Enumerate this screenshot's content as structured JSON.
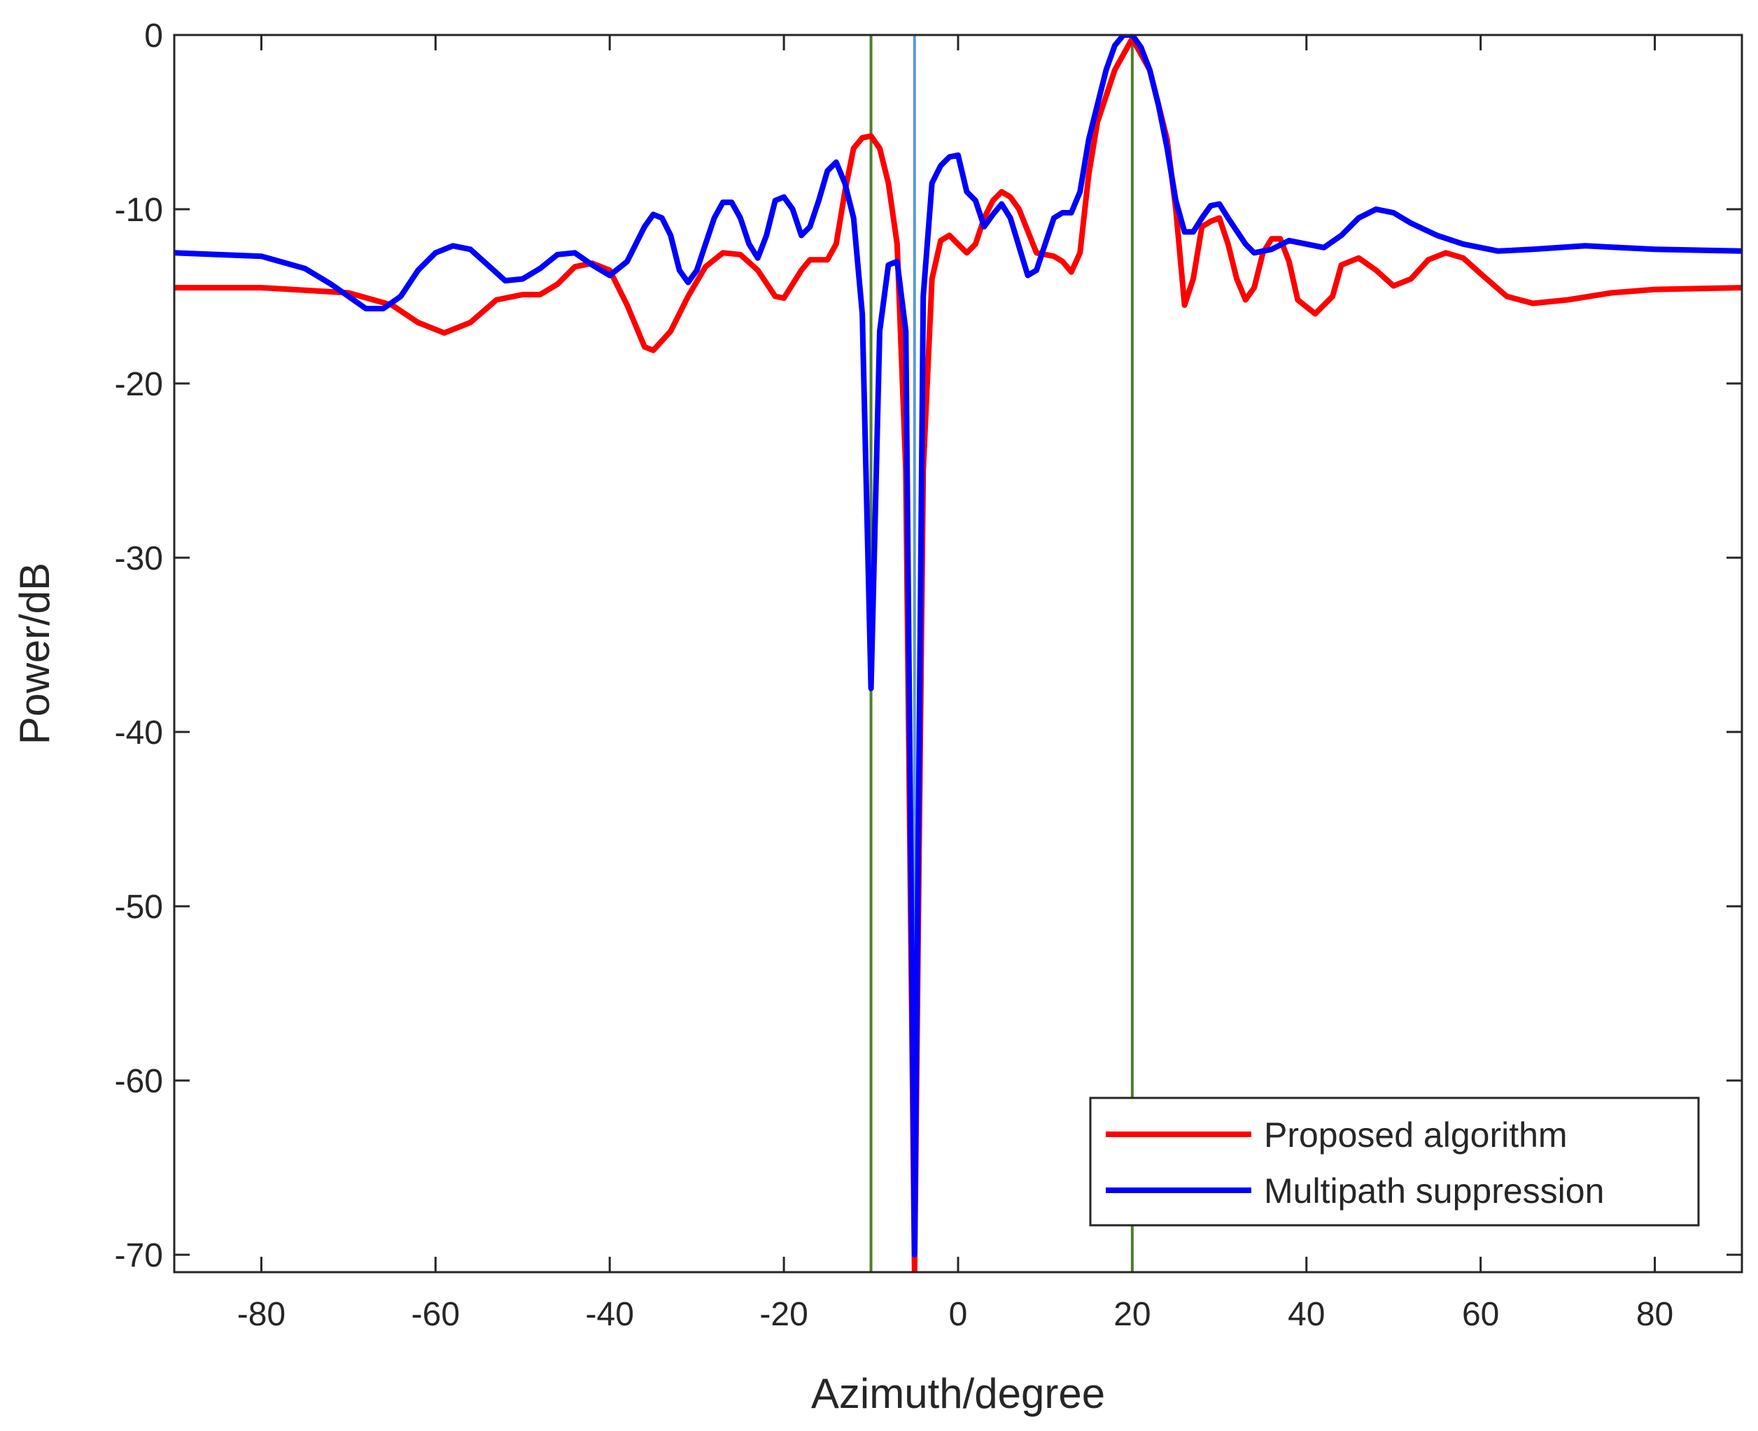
{
  "chart_data": {
    "type": "line",
    "xlabel": "Azimuth/degree",
    "ylabel": "Power/dB",
    "xlim": [
      -90,
      90
    ],
    "ylim": [
      -71,
      0
    ],
    "xticks": [
      -80,
      -60,
      -40,
      -20,
      0,
      20,
      40,
      60,
      80
    ],
    "yticks": [
      -70,
      -60,
      -50,
      -40,
      -30,
      -20,
      -10,
      0
    ],
    "legend": "lower right",
    "reference_lines": [
      {
        "x": -10,
        "color": "#4e7f2e"
      },
      {
        "x": -5,
        "color": "#5b9bd5"
      },
      {
        "x": 20,
        "color": "#4e7f2e"
      }
    ],
    "series": [
      {
        "name": "Proposed algorithm",
        "color": "#ff0000",
        "x": [
          -90,
          -80,
          -70,
          -65,
          -62,
          -59,
          -56,
          -53,
          -50,
          -48,
          -46,
          -44,
          -42,
          -40,
          -38,
          -36,
          -35,
          -33,
          -31,
          -29,
          -27,
          -25,
          -23,
          -21,
          -20,
          -18,
          -17,
          -15,
          -14,
          -13,
          -12,
          -11,
          -10,
          -9,
          -8,
          -7,
          -6,
          -5,
          -4,
          -3,
          -2,
          -1,
          1,
          2,
          3,
          4,
          5,
          6,
          7,
          9,
          11,
          12,
          13,
          14,
          15,
          16,
          18,
          20,
          22,
          24,
          25,
          26,
          27,
          28,
          29,
          30,
          31,
          32,
          33,
          34,
          35,
          36,
          37,
          38,
          39,
          41,
          43,
          44,
          46,
          48,
          50,
          52,
          54,
          56,
          58,
          60,
          63,
          66,
          70,
          75,
          80,
          90
        ],
        "values": [
          -14.5,
          -14.5,
          -14.8,
          -15.5,
          -16.5,
          -17.1,
          -16.5,
          -15.2,
          -14.9,
          -14.9,
          -14.3,
          -13.3,
          -13.1,
          -13.5,
          -15.5,
          -17.9,
          -18.1,
          -17,
          -15,
          -13.3,
          -12.5,
          -12.6,
          -13.5,
          -15,
          -15.1,
          -13.5,
          -12.9,
          -12.9,
          -12,
          -9,
          -6.5,
          -5.9,
          -5.8,
          -6.5,
          -8.5,
          -12,
          -25,
          -71,
          -25,
          -14,
          -11.8,
          -11.5,
          -12.5,
          -12,
          -10.5,
          -9.5,
          -9,
          -9.3,
          -10,
          -12.5,
          -12.7,
          -13,
          -13.6,
          -12.5,
          -8,
          -5,
          -2,
          -0.2,
          -2,
          -6,
          -10,
          -15.5,
          -14,
          -11,
          -10.7,
          -10.5,
          -12,
          -14,
          -15.2,
          -14.5,
          -12.5,
          -11.7,
          -11.7,
          -13,
          -15.2,
          -16,
          -15,
          -13.2,
          -12.8,
          -13.5,
          -14.4,
          -14,
          -12.9,
          -12.5,
          -12.8,
          -13.7,
          -15,
          -15.4,
          -15.2,
          -14.8,
          -14.6,
          -14.5
        ]
      },
      {
        "name": "Multipath suppression",
        "color": "#0000ff",
        "x": [
          -90,
          -80,
          -75,
          -72,
          -70,
          -68,
          -66,
          -64,
          -62,
          -60,
          -58,
          -56,
          -54,
          -52,
          -50,
          -48,
          -46,
          -44,
          -42,
          -40,
          -38,
          -36,
          -35,
          -34,
          -33,
          -32,
          -31,
          -30,
          -29,
          -28,
          -27,
          -26,
          -25,
          -24,
          -23,
          -22,
          -21,
          -20,
          -19,
          -18,
          -17,
          -16,
          -15,
          -14,
          -13,
          -12,
          -11,
          -10,
          -9,
          -8,
          -7,
          -6,
          -5,
          -4,
          -3,
          -2,
          -1,
          0,
          1,
          2,
          3,
          4,
          5,
          6,
          8,
          9,
          10,
          11,
          12,
          13,
          14,
          15,
          16,
          17,
          18,
          19,
          20,
          21,
          22,
          23,
          24,
          25,
          26,
          27,
          28,
          29,
          30,
          31,
          33,
          34,
          36,
          38,
          40,
          42,
          44,
          46,
          48,
          50,
          52,
          55,
          58,
          62,
          66,
          72,
          80,
          90
        ],
        "values": [
          -12.5,
          -12.7,
          -13.4,
          -14.3,
          -15,
          -15.7,
          -15.7,
          -15,
          -13.5,
          -12.5,
          -12.1,
          -12.3,
          -13.2,
          -14.1,
          -14,
          -13.4,
          -12.6,
          -12.5,
          -13.2,
          -13.8,
          -13,
          -11,
          -10.3,
          -10.5,
          -11.5,
          -13.5,
          -14.2,
          -13.5,
          -12,
          -10.5,
          -9.6,
          -9.6,
          -10.5,
          -12,
          -12.8,
          -11.5,
          -9.5,
          -9.3,
          -10,
          -11.5,
          -11,
          -9.5,
          -7.8,
          -7.3,
          -8.5,
          -10.5,
          -16,
          -37.5,
          -17,
          -13.2,
          -13,
          -17,
          -70,
          -15,
          -8.5,
          -7.5,
          -7,
          -6.9,
          -9,
          -9.5,
          -11,
          -10.3,
          -9.7,
          -10.5,
          -13.8,
          -13.5,
          -12,
          -10.5,
          -10.2,
          -10.2,
          -9,
          -6,
          -4,
          -2,
          -0.6,
          0,
          0,
          -0.7,
          -2,
          -4,
          -6.5,
          -9.5,
          -11.3,
          -11.3,
          -10.5,
          -9.8,
          -9.7,
          -10.5,
          -12,
          -12.5,
          -12.3,
          -11.8,
          -12,
          -12.2,
          -11.5,
          -10.5,
          -10,
          -10.2,
          -10.8,
          -11.5,
          -12,
          -12.4,
          -12.3,
          -12.1,
          -12.3,
          -12.4
        ]
      }
    ]
  }
}
